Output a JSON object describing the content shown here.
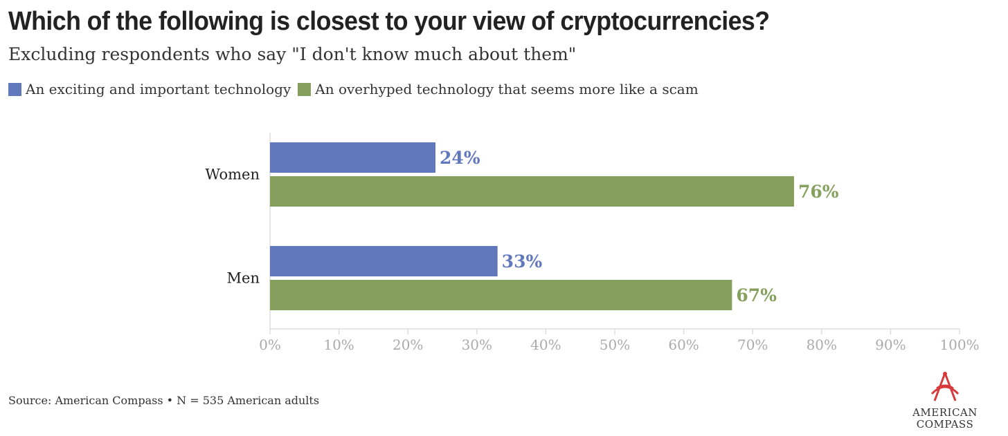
{
  "title": "Which of the following is closest to your view of cryptocurrencies?",
  "subtitle": "Excluding respondents who say \"I don't know much about them\"",
  "source": "Source: American Compass • N = 535 American adults",
  "logo": {
    "line1": "AMERICAN",
    "line2": "COMPASS"
  },
  "colors": {
    "series1": "#6278bd",
    "series2": "#84a05c",
    "axis": "#aaaaaa",
    "text": "#222222"
  },
  "chart_data": {
    "type": "bar",
    "orientation": "horizontal",
    "categories": [
      "Women",
      "Men"
    ],
    "series": [
      {
        "name": "An exciting and important technology",
        "values": [
          24,
          33
        ],
        "labels": [
          "24%",
          "33%"
        ]
      },
      {
        "name": "An overhyped technology that seems more like a scam",
        "values": [
          76,
          67
        ],
        "labels": [
          "76%",
          "67%"
        ]
      }
    ],
    "xlim": [
      0,
      100
    ],
    "ticks": [
      0,
      10,
      20,
      30,
      40,
      50,
      60,
      70,
      80,
      90,
      100
    ],
    "tick_labels": [
      "0%",
      "10%",
      "20%",
      "30%",
      "40%",
      "50%",
      "60%",
      "70%",
      "80%",
      "90%",
      "100%"
    ],
    "legend_position": "top-left",
    "grid": false
  }
}
